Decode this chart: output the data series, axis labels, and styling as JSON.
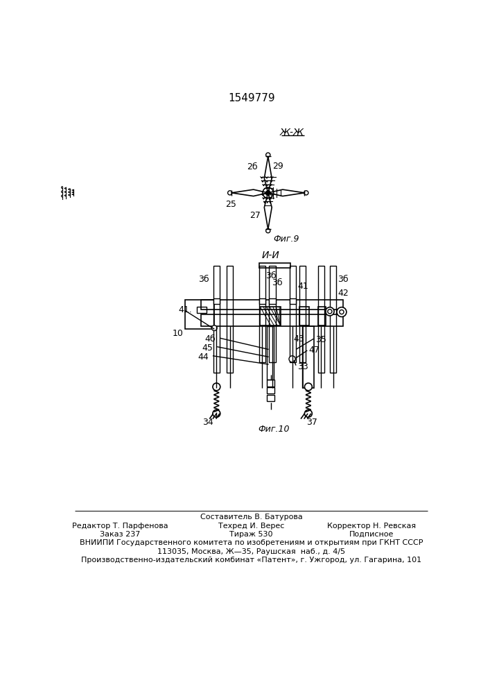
{
  "title": "1549779",
  "background_color": "#ffffff",
  "fig9_label": "Фиг.9",
  "fig10_label": "Фиг.10",
  "section_jj": "Ж-Ж",
  "section_ii": "И-И",
  "footer_line0": "Составитель В. Батурова",
  "footer_col1_l1": "Редактор Т. Парфенова",
  "footer_col1_l2": "Заказ 237",
  "footer_col2_l1": "Техред И. Верес",
  "footer_col2_l2": "Тираж 530",
  "footer_col3_l1": "Корректор Н. Ревская",
  "footer_col3_l2": "Подписное",
  "footer_vniip": "ВНИИПИ Государственного комитета по изобретениям и открытиям при ГКНТ СССР",
  "footer_addr1": "113035, Москва, Ж—35, Раушская  наб., д. 4/5",
  "footer_addr2": "Производственно-издательский комбинат «Патент», г. Ужгород, ул. Гагарина, 101"
}
